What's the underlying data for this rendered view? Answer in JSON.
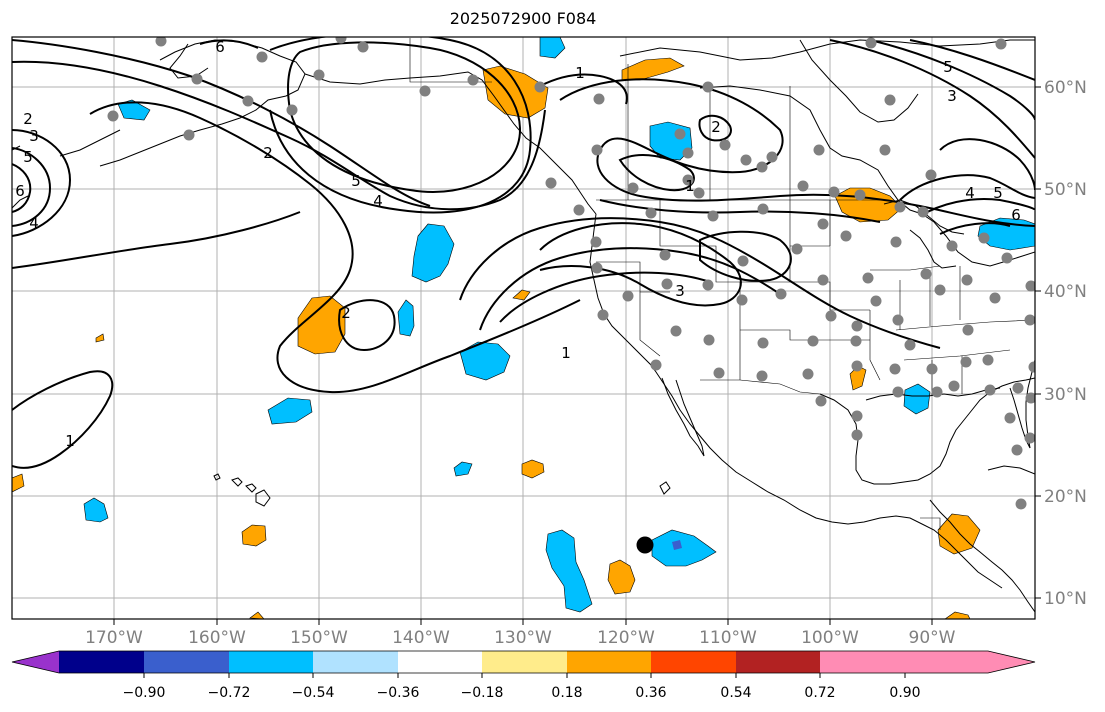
{
  "title": "2025072900 F084",
  "lon_ticks": [
    "170°W",
    "160°W",
    "150°W",
    "140°W",
    "130°W",
    "120°W",
    "110°W",
    "100°W",
    "90°W"
  ],
  "lat_ticks": [
    "60°N",
    "50°N",
    "40°N",
    "30°N",
    "20°N",
    "10°N"
  ],
  "colorbar": {
    "tick_labels": [
      "−0.90",
      "−0.72",
      "−0.54",
      "−0.36",
      "−0.18",
      "0.18",
      "0.36",
      "0.54",
      "0.72",
      "0.90"
    ],
    "colors": [
      "#9932cc",
      "#00008b",
      "#3a5fcd",
      "#00bfff",
      "#b0e2ff",
      "#ffffff",
      "#ffec8b",
      "#ffa500",
      "#ff4500",
      "#b22222",
      "#ff8cb4"
    ]
  },
  "contour_labels": [
    "2",
    "3",
    "5",
    "6",
    "4",
    "1",
    "6",
    "5",
    "4",
    "2",
    "1",
    "2",
    "3",
    "1",
    "2",
    "4",
    "5",
    "6",
    "3",
    "5",
    "1"
  ]
}
